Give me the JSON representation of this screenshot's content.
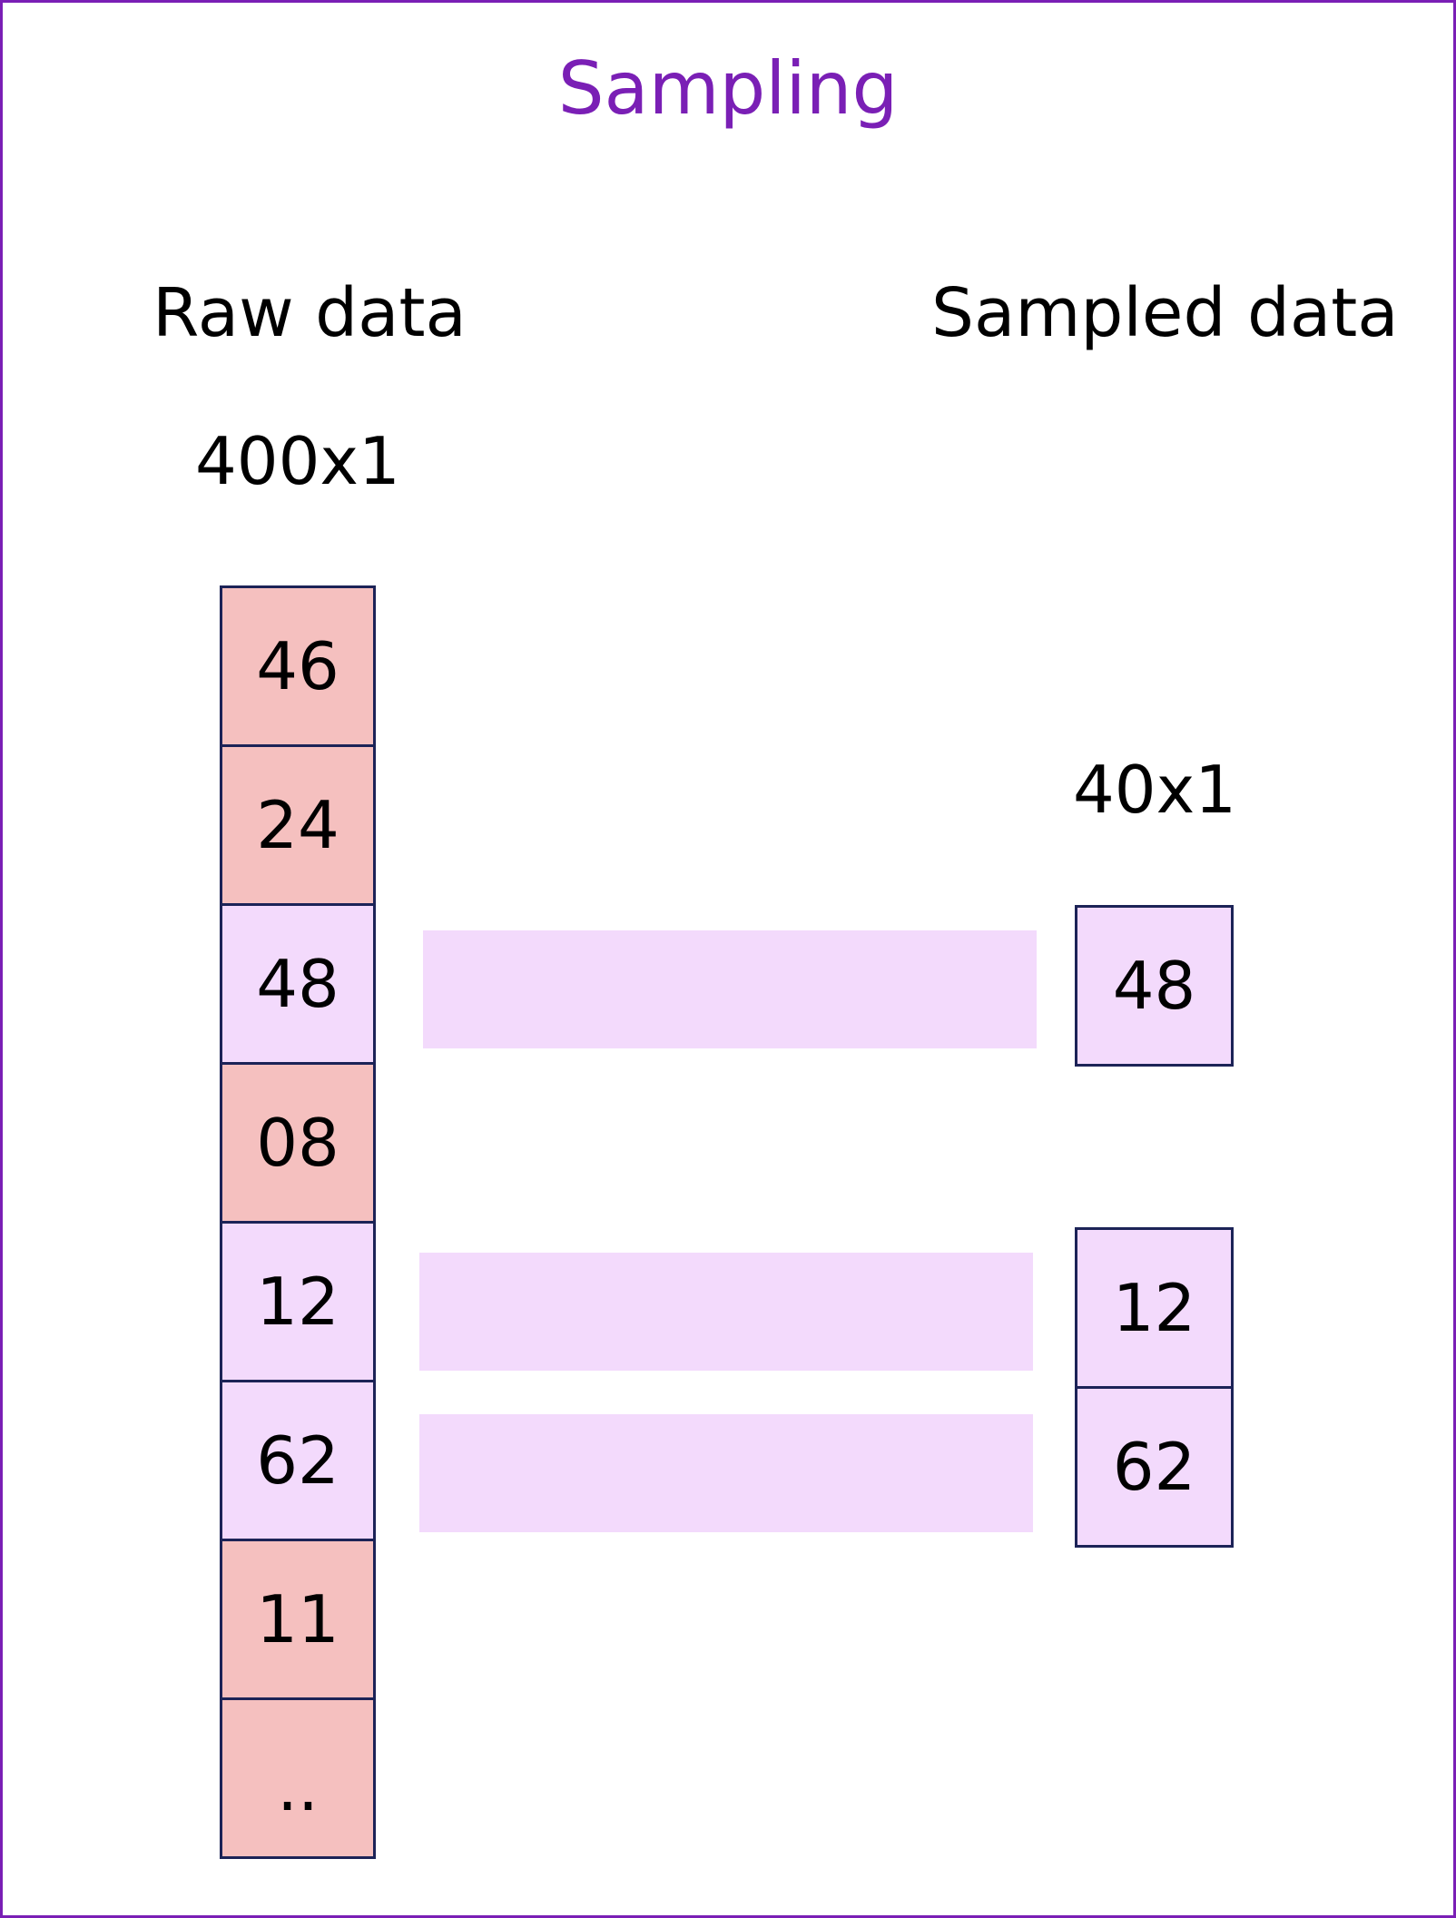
{
  "title": "Sampling",
  "raw": {
    "heading": "Raw data",
    "dimensions": "400x1",
    "cells": [
      {
        "value": "46",
        "selected": false
      },
      {
        "value": "24",
        "selected": false
      },
      {
        "value": "48",
        "selected": true
      },
      {
        "value": "08",
        "selected": false
      },
      {
        "value": "12",
        "selected": true
      },
      {
        "value": "62",
        "selected": true
      },
      {
        "value": "11",
        "selected": false
      },
      {
        "value": "..",
        "selected": false
      }
    ]
  },
  "sampled": {
    "heading": "Sampled data",
    "dimensions": "40x1",
    "cells": [
      "48",
      "12",
      "62"
    ]
  },
  "colors": {
    "title": "#7a1fb5",
    "selected_fill": "#f3dafc",
    "unselected_fill": "#f5c0bf",
    "cell_border": "#1c2357"
  }
}
